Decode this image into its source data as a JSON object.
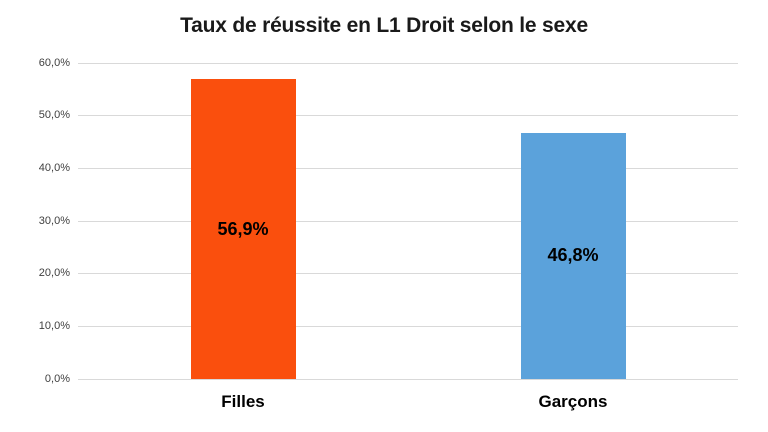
{
  "chart_data": {
    "type": "bar",
    "title": "Taux de réussite en L1 Droit selon le sexe",
    "categories": [
      "Filles",
      "Garçons"
    ],
    "values": [
      56.9,
      46.8
    ],
    "value_labels": [
      "56,9%",
      "46,8%"
    ],
    "bar_colors": [
      "#fa4f0d",
      "#5ba2db"
    ],
    "xlabel": "",
    "ylabel": "",
    "ylim": [
      0,
      60
    ],
    "ytick_values": [
      0,
      10,
      20,
      30,
      40,
      50,
      60
    ],
    "ytick_labels": [
      "0,0%",
      "10,0%",
      "20,0%",
      "30,0%",
      "40,0%",
      "50,0%",
      "60,0%"
    ],
    "grid": "horizontal",
    "gridline_color": "#d9d9d9",
    "legend": "none",
    "data_label_position": "center"
  }
}
